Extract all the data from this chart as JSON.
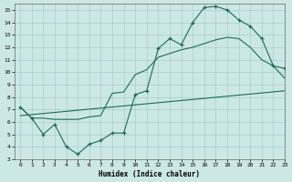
{
  "xlabel": "Humidex (Indice chaleur)",
  "bg_color": "#cce8e4",
  "grid_color": "#aacccc",
  "line_color": "#1a6b5a",
  "xlim": [
    -0.5,
    23
  ],
  "ylim": [
    3,
    15.5
  ],
  "xticks": [
    0,
    1,
    2,
    3,
    4,
    5,
    6,
    7,
    8,
    9,
    10,
    11,
    12,
    13,
    14,
    15,
    16,
    17,
    18,
    19,
    20,
    21,
    22,
    23
  ],
  "yticks": [
    3,
    4,
    5,
    6,
    7,
    8,
    9,
    10,
    11,
    12,
    13,
    14,
    15
  ],
  "line1_x": [
    0,
    1,
    2,
    3,
    4,
    5,
    6,
    7,
    8,
    9,
    10,
    11,
    12,
    13,
    14,
    15,
    16,
    17,
    18,
    19,
    20,
    21,
    22,
    23
  ],
  "line1_y": [
    7.2,
    6.3,
    5.0,
    5.8,
    4.0,
    3.4,
    4.2,
    4.5,
    5.1,
    5.1,
    8.2,
    8.5,
    11.9,
    12.7,
    12.2,
    14.0,
    15.2,
    15.3,
    15.0,
    14.2,
    13.7,
    12.7,
    10.5,
    10.3
  ],
  "line2_x": [
    0,
    1,
    2,
    3,
    4,
    5,
    6,
    7,
    8,
    9,
    10,
    11,
    12,
    13,
    14,
    15,
    16,
    17,
    18,
    19,
    20,
    21,
    22,
    23
  ],
  "line2_y": [
    7.2,
    6.3,
    6.3,
    6.2,
    6.2,
    6.2,
    6.4,
    6.5,
    8.3,
    8.4,
    9.8,
    10.2,
    11.2,
    11.5,
    11.8,
    12.0,
    12.3,
    12.6,
    12.8,
    12.7,
    12.0,
    11.0,
    10.5,
    9.5
  ],
  "line3_x": [
    0,
    23
  ],
  "line3_y": [
    6.5,
    8.5
  ]
}
